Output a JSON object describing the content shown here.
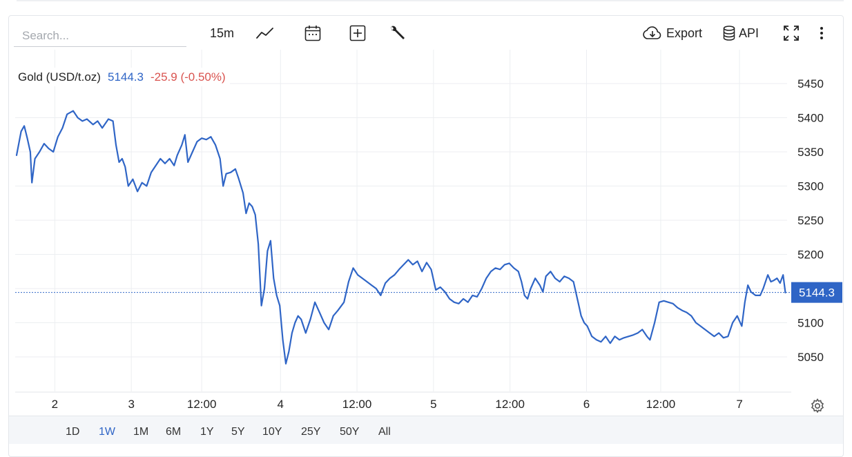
{
  "toolbar": {
    "search_placeholder": "Search...",
    "interval": "15m",
    "export_label": "Export",
    "api_label": "API"
  },
  "legend": {
    "name": "Gold (USD/t.oz)",
    "price": "5144.3",
    "change": "-25.9 (-0.50%)"
  },
  "range_buttons": [
    "1D",
    "1W",
    "1M",
    "6M",
    "1Y",
    "5Y",
    "10Y",
    "25Y",
    "50Y",
    "All"
  ],
  "active_range": "1W",
  "colors": {
    "line": "#2f65c6",
    "last_price_bg": "#2f65c6",
    "grid": "#eceef1",
    "change_negative": "#d9534f"
  },
  "chart_data": {
    "type": "line",
    "title": "",
    "xlabel": "",
    "ylabel": "",
    "x_ticks": [
      {
        "label": "2",
        "t": 0.5
      },
      {
        "label": "3",
        "t": 1.5
      },
      {
        "label": "12:00",
        "t": 2.42
      },
      {
        "label": "4",
        "t": 3.45
      },
      {
        "label": "12:00",
        "t": 4.45
      },
      {
        "label": "5",
        "t": 5.45
      },
      {
        "label": "12:00",
        "t": 6.45
      },
      {
        "label": "6",
        "t": 7.45
      },
      {
        "label": "12:00",
        "t": 8.42
      },
      {
        "label": "7",
        "t": 9.45
      }
    ],
    "x_range": [
      0,
      10
    ],
    "ylim": [
      5020,
      5475
    ],
    "y_ticks": [
      5050,
      5100,
      5150,
      5200,
      5250,
      5300,
      5350,
      5400,
      5450
    ],
    "last_value": 5144.3,
    "series": [
      {
        "points": [
          [
            0.0,
            5345
          ],
          [
            0.06,
            5380
          ],
          [
            0.1,
            5388
          ],
          [
            0.14,
            5370
          ],
          [
            0.18,
            5350
          ],
          [
            0.2,
            5305
          ],
          [
            0.24,
            5340
          ],
          [
            0.3,
            5350
          ],
          [
            0.36,
            5362
          ],
          [
            0.42,
            5355
          ],
          [
            0.48,
            5350
          ],
          [
            0.54,
            5372
          ],
          [
            0.6,
            5385
          ],
          [
            0.66,
            5405
          ],
          [
            0.74,
            5410
          ],
          [
            0.8,
            5400
          ],
          [
            0.86,
            5395
          ],
          [
            0.92,
            5398
          ],
          [
            1.0,
            5390
          ],
          [
            1.06,
            5395
          ],
          [
            1.12,
            5385
          ],
          [
            1.2,
            5398
          ],
          [
            1.26,
            5395
          ],
          [
            1.3,
            5360
          ],
          [
            1.34,
            5335
          ],
          [
            1.38,
            5340
          ],
          [
            1.42,
            5328
          ],
          [
            1.46,
            5300
          ],
          [
            1.52,
            5310
          ],
          [
            1.58,
            5292
          ],
          [
            1.64,
            5305
          ],
          [
            1.7,
            5300
          ],
          [
            1.76,
            5320
          ],
          [
            1.82,
            5330
          ],
          [
            1.88,
            5340
          ],
          [
            1.94,
            5333
          ],
          [
            2.0,
            5340
          ],
          [
            2.06,
            5330
          ],
          [
            2.1,
            5345
          ],
          [
            2.16,
            5360
          ],
          [
            2.2,
            5375
          ],
          [
            2.24,
            5335
          ],
          [
            2.3,
            5350
          ],
          [
            2.36,
            5365
          ],
          [
            2.42,
            5370
          ],
          [
            2.48,
            5368
          ],
          [
            2.54,
            5372
          ],
          [
            2.6,
            5360
          ],
          [
            2.66,
            5340
          ],
          [
            2.7,
            5300
          ],
          [
            2.74,
            5318
          ],
          [
            2.8,
            5320
          ],
          [
            2.86,
            5325
          ],
          [
            2.9,
            5312
          ],
          [
            2.96,
            5290
          ],
          [
            3.0,
            5260
          ],
          [
            3.04,
            5275
          ],
          [
            3.08,
            5270
          ],
          [
            3.12,
            5258
          ],
          [
            3.16,
            5215
          ],
          [
            3.2,
            5125
          ],
          [
            3.24,
            5150
          ],
          [
            3.28,
            5205
          ],
          [
            3.32,
            5220
          ],
          [
            3.36,
            5165
          ],
          [
            3.4,
            5140
          ],
          [
            3.44,
            5125
          ],
          [
            3.48,
            5075
          ],
          [
            3.52,
            5040
          ],
          [
            3.56,
            5058
          ],
          [
            3.6,
            5085
          ],
          [
            3.64,
            5100
          ],
          [
            3.68,
            5110
          ],
          [
            3.72,
            5105
          ],
          [
            3.78,
            5085
          ],
          [
            3.84,
            5105
          ],
          [
            3.9,
            5130
          ],
          [
            3.96,
            5115
          ],
          [
            4.02,
            5100
          ],
          [
            4.08,
            5090
          ],
          [
            4.14,
            5110
          ],
          [
            4.2,
            5118
          ],
          [
            4.28,
            5130
          ],
          [
            4.34,
            5160
          ],
          [
            4.4,
            5180
          ],
          [
            4.46,
            5170
          ],
          [
            4.52,
            5165
          ],
          [
            4.58,
            5160
          ],
          [
            4.64,
            5155
          ],
          [
            4.7,
            5150
          ],
          [
            4.76,
            5140
          ],
          [
            4.82,
            5158
          ],
          [
            4.88,
            5165
          ],
          [
            4.94,
            5170
          ],
          [
            5.0,
            5178
          ],
          [
            5.06,
            5185
          ],
          [
            5.12,
            5192
          ],
          [
            5.18,
            5185
          ],
          [
            5.24,
            5190
          ],
          [
            5.3,
            5175
          ],
          [
            5.36,
            5188
          ],
          [
            5.42,
            5178
          ],
          [
            5.48,
            5148
          ],
          [
            5.54,
            5152
          ],
          [
            5.6,
            5145
          ],
          [
            5.66,
            5135
          ],
          [
            5.72,
            5130
          ],
          [
            5.78,
            5128
          ],
          [
            5.84,
            5135
          ],
          [
            5.9,
            5130
          ],
          [
            5.96,
            5140
          ],
          [
            6.02,
            5138
          ],
          [
            6.08,
            5150
          ],
          [
            6.14,
            5165
          ],
          [
            6.2,
            5175
          ],
          [
            6.26,
            5180
          ],
          [
            6.32,
            5178
          ],
          [
            6.38,
            5185
          ],
          [
            6.44,
            5187
          ],
          [
            6.5,
            5180
          ],
          [
            6.56,
            5175
          ],
          [
            6.6,
            5160
          ],
          [
            6.64,
            5140
          ],
          [
            6.68,
            5135
          ],
          [
            6.72,
            5150
          ],
          [
            6.78,
            5165
          ],
          [
            6.84,
            5155
          ],
          [
            6.88,
            5145
          ],
          [
            6.92,
            5168
          ],
          [
            6.98,
            5175
          ],
          [
            7.04,
            5165
          ],
          [
            7.1,
            5160
          ],
          [
            7.16,
            5168
          ],
          [
            7.22,
            5165
          ],
          [
            7.28,
            5160
          ],
          [
            7.34,
            5130
          ],
          [
            7.38,
            5110
          ],
          [
            7.42,
            5100
          ],
          [
            7.46,
            5095
          ],
          [
            7.52,
            5080
          ],
          [
            7.58,
            5075
          ],
          [
            7.64,
            5072
          ],
          [
            7.7,
            5080
          ],
          [
            7.76,
            5070
          ],
          [
            7.82,
            5080
          ],
          [
            7.88,
            5075
          ],
          [
            7.94,
            5078
          ],
          [
            8.0,
            5080
          ],
          [
            8.06,
            5082
          ],
          [
            8.12,
            5085
          ],
          [
            8.18,
            5090
          ],
          [
            8.24,
            5080
          ],
          [
            8.28,
            5075
          ],
          [
            8.34,
            5100
          ],
          [
            8.4,
            5130
          ],
          [
            8.46,
            5132
          ],
          [
            8.52,
            5130
          ],
          [
            8.58,
            5128
          ],
          [
            8.64,
            5122
          ],
          [
            8.7,
            5118
          ],
          [
            8.76,
            5115
          ],
          [
            8.82,
            5110
          ],
          [
            8.88,
            5100
          ],
          [
            8.94,
            5095
          ],
          [
            9.0,
            5090
          ],
          [
            9.06,
            5085
          ],
          [
            9.12,
            5080
          ],
          [
            9.18,
            5085
          ],
          [
            9.24,
            5078
          ],
          [
            9.3,
            5080
          ],
          [
            9.36,
            5100
          ],
          [
            9.42,
            5110
          ],
          [
            9.48,
            5095
          ],
          [
            9.52,
            5130
          ],
          [
            9.56,
            5155
          ],
          [
            9.6,
            5145
          ],
          [
            9.66,
            5140
          ],
          [
            9.72,
            5140
          ],
          [
            9.76,
            5150
          ],
          [
            9.82,
            5170
          ],
          [
            9.86,
            5160
          ],
          [
            9.9,
            5162
          ],
          [
            9.94,
            5165
          ],
          [
            9.98,
            5158
          ],
          [
            10.02,
            5170
          ],
          [
            10.05,
            5144
          ]
        ]
      }
    ]
  }
}
